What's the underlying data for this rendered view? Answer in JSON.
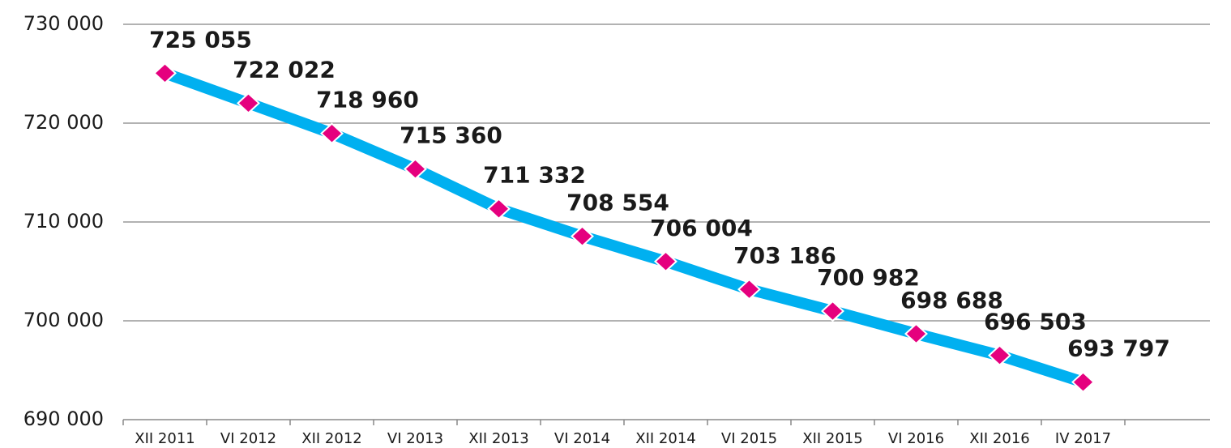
{
  "chart_data": {
    "type": "line",
    "categories": [
      "XII 2011",
      "VI 2012",
      "XII 2012",
      "VI 2013",
      "XII 2013",
      "VI 2014",
      "XII 2014",
      "VI 2015",
      "XII 2015",
      "VI 2016",
      "XII 2016",
      "IV 2017"
    ],
    "series": [
      {
        "color": "#00b0f0",
        "marker_color": "#e5007e",
        "values": [
          725055,
          722022,
          718960,
          715360,
          711332,
          708554,
          706004,
          703186,
          700982,
          698688,
          696503,
          693797
        ],
        "value_labels": [
          "725 055",
          "722 022",
          "718 960",
          "715 360",
          "711 332",
          "708 554",
          "706 004",
          "703 186",
          "700 982",
          "698 688",
          "696 503",
          "693 797"
        ]
      }
    ],
    "ylim": [
      690000,
      730000
    ],
    "yticks": [
      {
        "value": 690000,
        "label": "690 000"
      },
      {
        "value": 700000,
        "label": "700 000"
      },
      {
        "value": 710000,
        "label": "710 000"
      },
      {
        "value": 720000,
        "label": "720 000"
      },
      {
        "value": 730000,
        "label": "730 000"
      }
    ],
    "grid": true
  }
}
